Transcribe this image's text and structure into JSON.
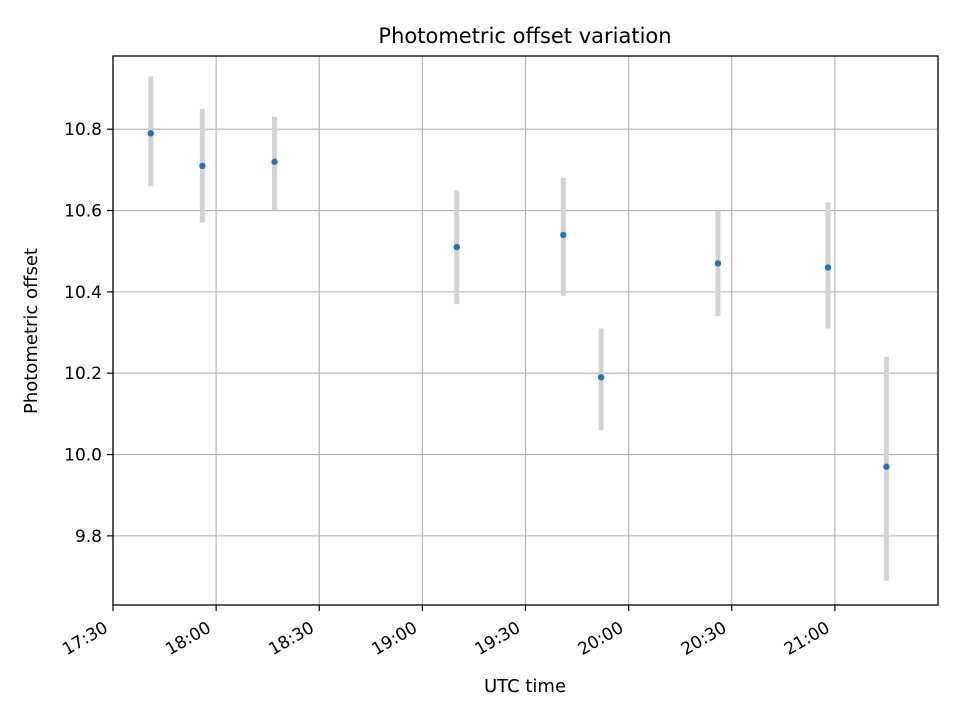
{
  "chart_data": {
    "type": "scatter",
    "title": "Photometric offset variation",
    "xlabel": "UTC time",
    "ylabel": "Photometric offset",
    "x_is_time": true,
    "xlim": [
      "17:30",
      "21:30"
    ],
    "ylim": [
      9.63,
      10.98
    ],
    "xticks": [
      "17:30",
      "18:00",
      "18:30",
      "19:00",
      "19:30",
      "20:00",
      "20:30",
      "21:00"
    ],
    "yticks": [
      9.8,
      10.0,
      10.2,
      10.4,
      10.6,
      10.8
    ],
    "ytick_labels": [
      "9.8",
      "10.0",
      "10.2",
      "10.4",
      "10.6",
      "10.8"
    ],
    "grid": true,
    "points": [
      {
        "x": "17:41",
        "y": 10.79,
        "err_low": 10.66,
        "err_high": 10.93
      },
      {
        "x": "17:56",
        "y": 10.71,
        "err_low": 10.57,
        "err_high": 10.85
      },
      {
        "x": "18:17",
        "y": 10.72,
        "err_low": 10.6,
        "err_high": 10.83
      },
      {
        "x": "19:10",
        "y": 10.51,
        "err_low": 10.37,
        "err_high": 10.65
      },
      {
        "x": "19:41",
        "y": 10.54,
        "err_low": 10.39,
        "err_high": 10.68
      },
      {
        "x": "19:52",
        "y": 10.19,
        "err_low": 10.06,
        "err_high": 10.31
      },
      {
        "x": "20:26",
        "y": 10.47,
        "err_low": 10.34,
        "err_high": 10.6
      },
      {
        "x": "20:58",
        "y": 10.46,
        "err_low": 10.31,
        "err_high": 10.62
      },
      {
        "x": "21:15",
        "y": 9.97,
        "err_low": 9.69,
        "err_high": 10.24
      }
    ],
    "colors": {
      "marker": "#1f77b4",
      "errorbar": "#d3d3d3",
      "grid": "#b0b0b0",
      "axes": "#000000"
    }
  }
}
